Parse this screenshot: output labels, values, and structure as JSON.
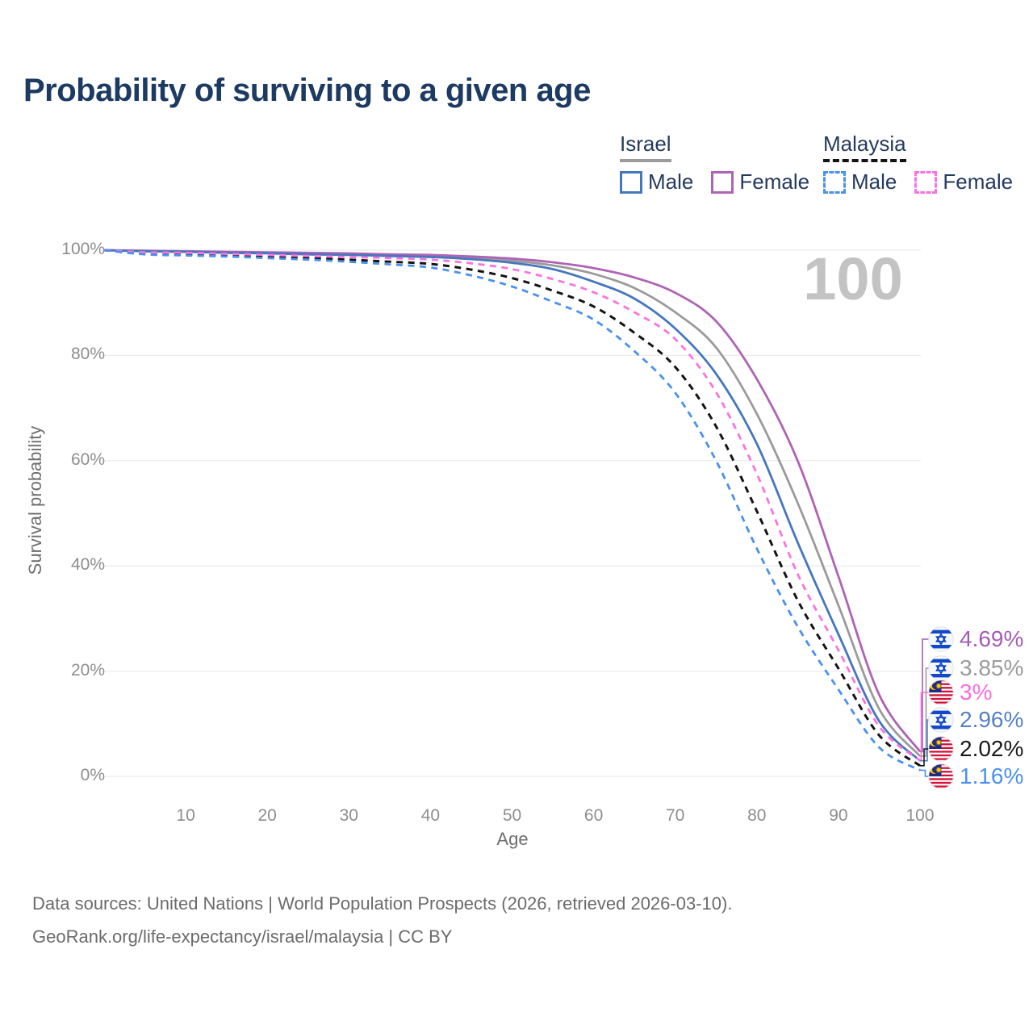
{
  "title": "Probability of surviving to a given age",
  "watermark": "100",
  "legend": {
    "groups": [
      {
        "country": "Israel",
        "line_style": "solid",
        "underline_color": "#9b9b9b",
        "items": [
          {
            "label": "Male",
            "color": "#4577bd"
          },
          {
            "label": "Female",
            "color": "#ae63b5"
          }
        ]
      },
      {
        "country": "Malaysia",
        "line_style": "dashed",
        "underline_color": "#141414",
        "items": [
          {
            "label": "Male",
            "color": "#4a90ee"
          },
          {
            "label": "Female",
            "color": "#fb73e0"
          }
        ]
      }
    ]
  },
  "chart_data": {
    "type": "line",
    "title": "Probability of surviving to a given age",
    "xlabel": "Age",
    "ylabel": "Survival probability",
    "xlim": [
      0,
      100
    ],
    "ylim": [
      0,
      100
    ],
    "grid": "horizontal-only",
    "x_ticks": [
      10,
      20,
      30,
      40,
      50,
      60,
      70,
      80,
      90,
      100
    ],
    "y_ticks": [
      0,
      20,
      40,
      60,
      80,
      100
    ],
    "y_tick_suffix": "%",
    "ages": [
      0,
      5,
      10,
      15,
      20,
      25,
      30,
      35,
      40,
      45,
      50,
      55,
      60,
      65,
      70,
      75,
      80,
      85,
      90,
      95,
      100
    ],
    "series": [
      {
        "name": "Israel average",
        "country": "Israel",
        "sex": "Both",
        "color": "#9b9b9b",
        "dash": "solid",
        "values": [
          100,
          99.8,
          99.7,
          99.6,
          99.5,
          99.4,
          99.2,
          99.1,
          98.9,
          98.6,
          98.0,
          97.1,
          95.5,
          92.8,
          88.2,
          81.5,
          68.9,
          52.0,
          32.5,
          12.8,
          3.85
        ],
        "end_value_pct": 3.85
      },
      {
        "name": "Israel Female",
        "country": "Israel",
        "sex": "Female",
        "color": "#ae63b5",
        "dash": "solid",
        "values": [
          100,
          99.9,
          99.8,
          99.7,
          99.6,
          99.5,
          99.4,
          99.2,
          99.1,
          98.8,
          98.4,
          97.7,
          96.6,
          94.8,
          91.9,
          86.5,
          75.5,
          60.0,
          38.0,
          15.5,
          4.69
        ],
        "end_value_pct": 4.69
      },
      {
        "name": "Israel Male",
        "country": "Israel",
        "sex": "Male",
        "color": "#4577bd",
        "dash": "solid",
        "values": [
          100,
          99.8,
          99.7,
          99.5,
          99.4,
          99.2,
          99.1,
          98.9,
          98.7,
          98.3,
          97.6,
          96.4,
          94.0,
          90.8,
          85.1,
          76.5,
          63.2,
          44.5,
          27.0,
          10.5,
          2.96
        ],
        "end_value_pct": 2.96
      },
      {
        "name": "Malaysia average",
        "country": "Malaysia",
        "sex": "Both",
        "color": "#141414",
        "dash": "dashed",
        "values": [
          100,
          99.4,
          99.2,
          99.0,
          98.8,
          98.5,
          98.2,
          97.8,
          97.4,
          96.3,
          94.7,
          92.3,
          89.3,
          84.3,
          77.8,
          66.5,
          50.4,
          33.5,
          20.5,
          7.8,
          2.02
        ],
        "end_value_pct": 2.02
      },
      {
        "name": "Malaysia Female",
        "country": "Malaysia",
        "sex": "Female",
        "color": "#fb73e0",
        "dash": "dashed",
        "values": [
          100,
          99.6,
          99.5,
          99.3,
          99.1,
          98.9,
          98.7,
          98.5,
          98.2,
          97.5,
          96.4,
          94.5,
          92.0,
          88.2,
          83.1,
          73.0,
          57.5,
          38.5,
          24.0,
          9.5,
          3.0
        ],
        "end_value_pct": 3.0
      },
      {
        "name": "Malaysia Male",
        "country": "Malaysia",
        "sex": "Male",
        "color": "#4a90ee",
        "dash": "dashed",
        "values": [
          100,
          99.2,
          99.0,
          98.8,
          98.5,
          98.2,
          97.8,
          97.3,
          96.7,
          95.2,
          93.1,
          90.2,
          86.8,
          80.8,
          72.9,
          60.0,
          43.3,
          28.5,
          16.5,
          5.5,
          1.16
        ],
        "end_value_pct": 1.16
      }
    ],
    "end_labels": [
      {
        "flag": "israel",
        "text": "4.69%",
        "color": "#a35cb5",
        "series": "Israel Female",
        "value_pct": 4.69
      },
      {
        "flag": "israel",
        "text": "3.85%",
        "color": "#9b9b9b",
        "series": "Israel average",
        "value_pct": 3.85
      },
      {
        "flag": "malaysia",
        "text": "3%",
        "color": "#fb6ee0",
        "series": "Malaysia Female",
        "value_pct": 3.0
      },
      {
        "flag": "israel",
        "text": "2.96%",
        "color": "#5580c5",
        "series": "Israel Male",
        "value_pct": 2.96
      },
      {
        "flag": "malaysia",
        "text": "2.02%",
        "color": "#1a1a1a",
        "series": "Malaysia average",
        "value_pct": 2.02
      },
      {
        "flag": "malaysia",
        "text": "1.16%",
        "color": "#4a90ee",
        "series": "Malaysia Male",
        "value_pct": 1.16
      }
    ]
  },
  "footer": {
    "line1": "Data sources: United Nations | World Population Prospects (2026, retrieved 2026-03-10).",
    "line2": "GeoRank.org/life-expectancy/israel/malaysia | CC BY"
  }
}
